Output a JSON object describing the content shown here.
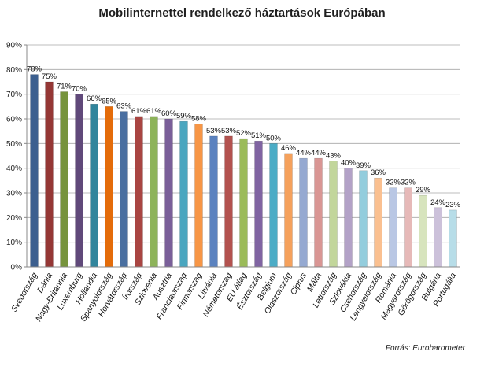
{
  "chart_data": {
    "type": "bar",
    "title": "Mobilinternettel rendelkező háztartások Európában",
    "xlabel": "",
    "ylabel": "",
    "ylim": [
      0,
      90
    ],
    "yticks": [
      "0%",
      "10%",
      "20%",
      "30%",
      "40%",
      "50%",
      "60%",
      "70%",
      "80%",
      "90%"
    ],
    "grid": true,
    "legend": "none",
    "categories": [
      "Svédország",
      "Dánia",
      "Nagy-Britannia",
      "Luxemburg",
      "Hollandia",
      "Spanyolország",
      "Horvátország",
      "Írország",
      "Szlovénia",
      "Ausztria",
      "Franciaország",
      "Finnország",
      "Litvánia",
      "Németország",
      "EU átlag",
      "Észtország",
      "Belgium",
      "Olaszország",
      "Ciprus",
      "Málta",
      "Lettország",
      "Szlovákia",
      "Csehország",
      "Lengyelország",
      "Románia",
      "Magyarország",
      "Görögország",
      "Bulgária",
      "Portugália"
    ],
    "values": [
      78,
      75,
      71,
      70,
      66,
      65,
      63,
      61,
      61,
      60,
      59,
      58,
      53,
      53,
      52,
      51,
      50,
      46,
      44,
      44,
      43,
      40,
      39,
      36,
      32,
      32,
      29,
      24,
      23
    ],
    "value_labels": [
      "78%",
      "75%",
      "71%",
      "70%",
      "66%",
      "65%",
      "63%",
      "61%",
      "61%",
      "60%",
      "59%",
      "58%",
      "53%",
      "53%",
      "52%",
      "51%",
      "50%",
      "46%",
      "44%",
      "44%",
      "43%",
      "40%",
      "39%",
      "36%",
      "32%",
      "32%",
      "29%",
      "24%",
      "23%"
    ],
    "colors": [
      "#3c5f8f",
      "#953735",
      "#76933c",
      "#60497a",
      "#31859c",
      "#e46c0a",
      "#4a6fa0",
      "#a94542",
      "#8db35a",
      "#7a5f99",
      "#4aa6bf",
      "#f79646",
      "#5b82bf",
      "#b3524f",
      "#9bbb59",
      "#8064a2",
      "#4bacc6",
      "#f5a15c",
      "#95a9d1",
      "#d99694",
      "#c2d69b",
      "#b3a2c7",
      "#93cddd",
      "#fac090",
      "#b9c7e4",
      "#e6b9b8",
      "#d7e4bd",
      "#ccc1da",
      "#b7dde8"
    ],
    "source": "Forrás: Eurobarometer"
  }
}
